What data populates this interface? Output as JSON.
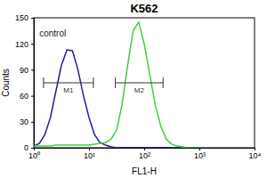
{
  "chart_data": {
    "type": "line",
    "title": "K562",
    "x_label": "FL1-H",
    "y_label": "Counts",
    "log": "x",
    "xlim": [
      1,
      10000
    ],
    "xticks": [
      {
        "value": 1,
        "label": "10⁰"
      },
      {
        "value": 10,
        "label": "10¹"
      },
      {
        "value": 100,
        "label": "10²"
      },
      {
        "value": 1000,
        "label": "10³"
      },
      {
        "value": 10000,
        "label": "10⁴"
      }
    ],
    "ylim": [
      0,
      150
    ],
    "yticks": [
      0,
      30,
      60,
      90,
      120,
      150
    ],
    "x": [
      1,
      1.26,
      1.58,
      2,
      2.51,
      3.16,
      3.98,
      5.01,
      6.31,
      7.94,
      10,
      12.6,
      15.8,
      20,
      25.1,
      31.6,
      39.8,
      50.1,
      63.1,
      79.4,
      100,
      126,
      158,
      200,
      251,
      316,
      398,
      501,
      631,
      794,
      1000
    ],
    "series": [
      {
        "color": "#1f1f9e",
        "values": [
          2,
          5,
          15,
          35,
          65,
          95,
          113,
          112,
          90,
          60,
          35,
          15,
          6,
          3,
          1,
          0,
          0,
          0,
          0,
          0,
          0,
          0,
          0,
          0,
          0,
          0,
          0,
          0,
          0,
          0,
          0
        ]
      },
      {
        "color": "#3ccf3c",
        "values": [
          2,
          2,
          2,
          2,
          3,
          3,
          3,
          3,
          3,
          3,
          3,
          4,
          5,
          6,
          10,
          20,
          50,
          95,
          135,
          145,
          120,
          85,
          50,
          25,
          10,
          4,
          2,
          1,
          0,
          0,
          0
        ]
      }
    ],
    "annotations": [
      {
        "text": "control",
        "x": 2.2,
        "y": 128
      }
    ],
    "gates": [
      {
        "label": "M1",
        "range": [
          1.5,
          12
        ],
        "y": 75
      },
      {
        "label": "M2",
        "range": [
          30,
          220
        ],
        "y": 75
      }
    ]
  }
}
